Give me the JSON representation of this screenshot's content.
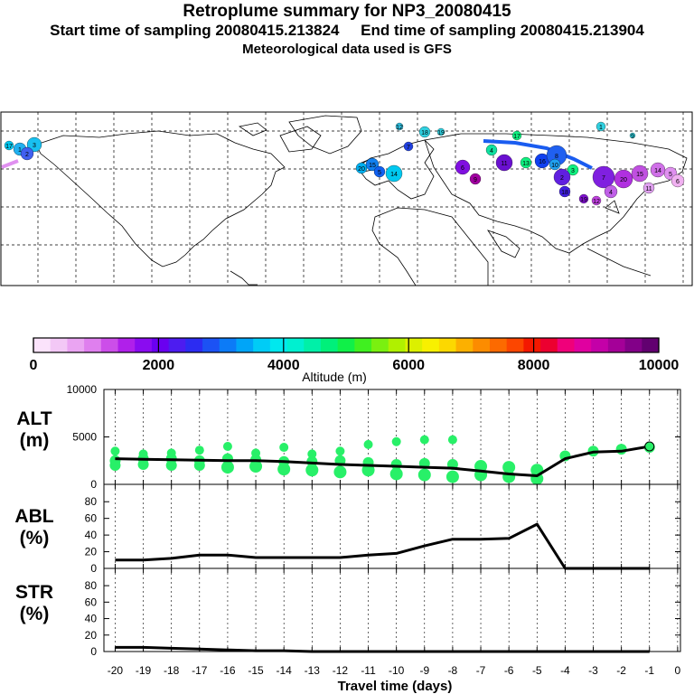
{
  "header": {
    "title": "Retroplume summary for NP3_20080415",
    "sampling_line": "Start time of sampling 20080415.213824     End time of sampling 20080415.213904",
    "met_line": "Meteorological data used is GFS"
  },
  "map": {
    "cluster_labels": [
      "17",
      "1",
      "3",
      "2",
      "18",
      "19",
      "12",
      "7",
      "20",
      "15",
      "14",
      "5",
      "6",
      "9",
      "4",
      "11",
      "13",
      "16",
      "8",
      "10"
    ]
  },
  "colorbar": {
    "label": "Altitude (m)",
    "ticks": [
      "0",
      "2000",
      "4000",
      "6000",
      "8000",
      "10000"
    ],
    "min": 0,
    "max": 10000,
    "colors": [
      "#fbe3fb",
      "#f3c8f6",
      "#eaa4f2",
      "#df7fee",
      "#cc4ee9",
      "#b020ea",
      "#8a0cf0",
      "#6a00f0",
      "#4d1cf0",
      "#2c2cf2",
      "#1c52f4",
      "#0c7bf7",
      "#00a5f8",
      "#00ccf6",
      "#00e8ee",
      "#00f0d0",
      "#00f0a8",
      "#00f07a",
      "#10f048",
      "#40f020",
      "#7af010",
      "#b0f000",
      "#dcf000",
      "#f8f000",
      "#fcd800",
      "#fcb000",
      "#fc8c00",
      "#fc6a00",
      "#fc4600",
      "#f41800",
      "#ec0030",
      "#f0007a",
      "#e000a0",
      "#c400a8",
      "#a40098",
      "#820088",
      "#620070"
    ]
  },
  "chart_data": [
    {
      "type": "line",
      "panel": "ALT",
      "ylabel_top": "ALT",
      "ylabel_unit": "(m)",
      "ylim": [
        0,
        10000
      ],
      "yticks": [
        0,
        5000,
        10000
      ],
      "x": [
        -20,
        -19,
        -18,
        -17,
        -16,
        -15,
        -14,
        -13,
        -12,
        -11,
        -10,
        -9,
        -8,
        -7,
        -6,
        -5,
        -4,
        -3,
        -2,
        -1
      ],
      "values": [
        2700,
        2650,
        2600,
        2550,
        2500,
        2500,
        2400,
        2250,
        2100,
        2000,
        1900,
        1800,
        1700,
        1400,
        1100,
        900,
        2700,
        3400,
        3500,
        4000
      ],
      "scatter": [
        {
          "x": -20,
          "y": [
            3500,
            2500,
            2000
          ]
        },
        {
          "x": -19,
          "y": [
            3200,
            2700,
            2100
          ]
        },
        {
          "x": -18,
          "y": [
            3300,
            2700,
            2000
          ]
        },
        {
          "x": -17,
          "y": [
            3600,
            2500,
            2000
          ]
        },
        {
          "x": -16,
          "y": [
            4000,
            2700,
            1800
          ]
        },
        {
          "x": -15,
          "y": [
            3300,
            2600,
            1900
          ]
        },
        {
          "x": -14,
          "y": [
            3900,
            2400,
            1600
          ]
        },
        {
          "x": -13,
          "y": [
            3200,
            2400,
            1500
          ]
        },
        {
          "x": -12,
          "y": [
            3500,
            2500,
            1300
          ]
        },
        {
          "x": -11,
          "y": [
            4200,
            2300,
            1500
          ]
        },
        {
          "x": -10,
          "y": [
            4500,
            2100,
            1100
          ]
        },
        {
          "x": -9,
          "y": [
            4700,
            2200,
            1000
          ]
        },
        {
          "x": -8,
          "y": [
            4700,
            2100,
            800
          ]
        },
        {
          "x": -7,
          "y": [
            1900,
            1000
          ]
        },
        {
          "x": -6,
          "y": [
            1800,
            800
          ]
        },
        {
          "x": -5,
          "y": [
            1500,
            600
          ]
        },
        {
          "x": -4,
          "y": [
            3000
          ]
        },
        {
          "x": -3,
          "y": [
            3500
          ]
        },
        {
          "x": -2,
          "y": [
            3700
          ]
        },
        {
          "x": -1,
          "y": [
            3900
          ]
        }
      ]
    },
    {
      "type": "line",
      "panel": "ABL",
      "ylabel_top": "ABL",
      "ylabel_unit": "(%)",
      "ylim": [
        0,
        90
      ],
      "yticks": [
        0,
        20,
        40,
        60,
        80
      ],
      "x": [
        -20,
        -19,
        -18,
        -17,
        -16,
        -15,
        -14,
        -13,
        -12,
        -11,
        -10,
        -9,
        -8,
        -7,
        -6,
        -5,
        -4,
        -3,
        -2,
        -1
      ],
      "values": [
        10,
        10,
        12,
        16,
        16,
        13,
        13,
        13,
        13,
        16,
        18,
        27,
        35,
        35,
        36,
        53,
        0,
        0,
        0,
        0
      ]
    },
    {
      "type": "line",
      "panel": "STR",
      "ylabel_top": "STR",
      "ylabel_unit": "(%)",
      "ylim": [
        0,
        90
      ],
      "yticks": [
        0,
        20,
        40,
        60,
        80
      ],
      "x": [
        -20,
        -19,
        -18,
        -17,
        -16,
        -15,
        -14,
        -13,
        -12,
        -11,
        -10,
        -9,
        -8,
        -7,
        -6,
        -5,
        -4,
        -3,
        -2,
        -1
      ],
      "values": [
        5,
        5,
        4,
        3,
        2,
        1,
        1,
        0,
        0,
        0,
        0,
        0,
        0,
        0,
        0,
        0,
        0,
        0,
        0,
        0
      ]
    }
  ],
  "xaxis": {
    "label": "Travel time (days)",
    "ticks": [
      "-20",
      "-19",
      "-18",
      "-17",
      "-16",
      "-15",
      "-14",
      "-13",
      "-12",
      "-11",
      "-10",
      "-9",
      "-8",
      "-7",
      "-6",
      "-5",
      "-4",
      "-3",
      "-2",
      "-1",
      "0"
    ],
    "values": [
      -20,
      -19,
      -18,
      -17,
      -16,
      -15,
      -14,
      -13,
      -12,
      -11,
      -10,
      -9,
      -8,
      -7,
      -6,
      -5,
      -4,
      -3,
      -2,
      -1,
      0
    ],
    "min": -20.4,
    "max": 0.1
  }
}
